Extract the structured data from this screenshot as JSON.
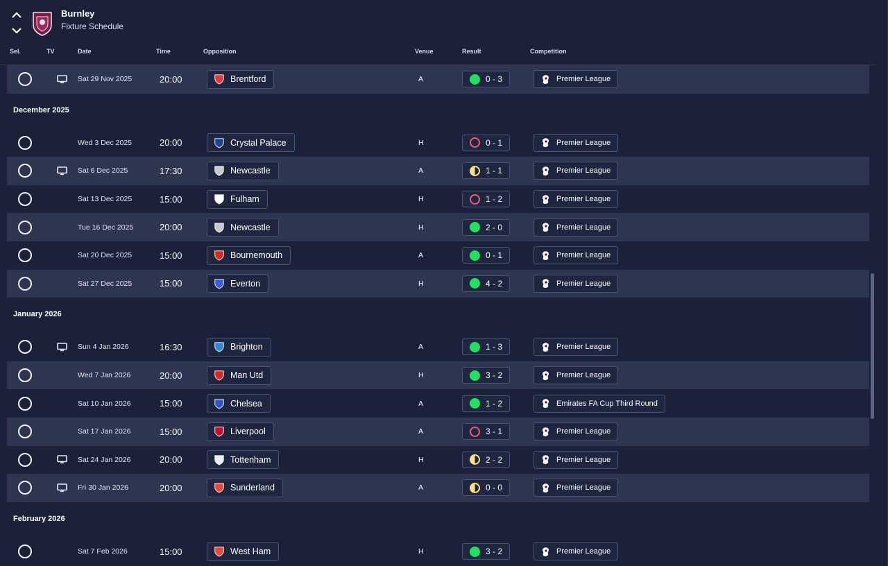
{
  "header": {
    "club": "Burnley",
    "page": "Fixture Schedule",
    "crest_icon": "burnley-crest-icon"
  },
  "columns": {
    "sel": "Sel.",
    "tv": "TV",
    "date": "Date",
    "time": "Time",
    "opposition": "Opposition",
    "venue": "Venue",
    "result": "Result",
    "competition": "Competition"
  },
  "colors": {
    "win": "#1de25b",
    "loss": "#ef5b79",
    "draw": "#ffe27a",
    "row_alt": "#2e3550",
    "background": "#1b2138"
  },
  "groups": [
    {
      "month": "",
      "fixtures": [
        {
          "tv": true,
          "date": "Sat 29 Nov 2025",
          "time": "20:00",
          "opponent": "Brentford",
          "venue": "A",
          "outcome": "win",
          "score": "0 - 3",
          "competition": "Premier League",
          "alt": true
        }
      ]
    },
    {
      "month": "December 2025",
      "fixtures": [
        {
          "tv": false,
          "date": "Wed 3 Dec 2025",
          "time": "20:00",
          "opponent": "Crystal Palace",
          "venue": "H",
          "outcome": "loss",
          "score": "0 - 1",
          "competition": "Premier League",
          "alt": false
        },
        {
          "tv": true,
          "date": "Sat 6 Dec 2025",
          "time": "17:30",
          "opponent": "Newcastle",
          "venue": "A",
          "outcome": "draw",
          "score": "1 - 1",
          "competition": "Premier League",
          "alt": true
        },
        {
          "tv": false,
          "date": "Sat 13 Dec 2025",
          "time": "15:00",
          "opponent": "Fulham",
          "venue": "H",
          "outcome": "loss",
          "score": "1 - 2",
          "competition": "Premier League",
          "alt": false
        },
        {
          "tv": false,
          "date": "Tue 16 Dec 2025",
          "time": "20:00",
          "opponent": "Newcastle",
          "venue": "H",
          "outcome": "win",
          "score": "2 - 0",
          "competition": "Premier League",
          "alt": true
        },
        {
          "tv": false,
          "date": "Sat 20 Dec 2025",
          "time": "15:00",
          "opponent": "Bournemouth",
          "venue": "A",
          "outcome": "win",
          "score": "0 - 1",
          "competition": "Premier League",
          "alt": false
        },
        {
          "tv": false,
          "date": "Sat 27 Dec 2025",
          "time": "15:00",
          "opponent": "Everton",
          "venue": "H",
          "outcome": "win",
          "score": "4 - 2",
          "competition": "Premier League",
          "alt": true
        }
      ]
    },
    {
      "month": "January 2026",
      "fixtures": [
        {
          "tv": true,
          "date": "Sun 4 Jan 2026",
          "time": "16:30",
          "opponent": "Brighton",
          "venue": "A",
          "outcome": "win",
          "score": "1 - 3",
          "competition": "Premier League",
          "alt": false
        },
        {
          "tv": false,
          "date": "Wed 7 Jan 2026",
          "time": "20:00",
          "opponent": "Man Utd",
          "venue": "H",
          "outcome": "win",
          "score": "3 - 2",
          "competition": "Premier League",
          "alt": true
        },
        {
          "tv": false,
          "date": "Sat 10 Jan 2026",
          "time": "15:00",
          "opponent": "Chelsea",
          "venue": "A",
          "outcome": "win",
          "score": "1 - 2",
          "competition": "Emirates FA Cup Third Round",
          "alt": false
        },
        {
          "tv": false,
          "date": "Sat 17 Jan 2026",
          "time": "15:00",
          "opponent": "Liverpool",
          "venue": "A",
          "outcome": "loss",
          "score": "3 - 1",
          "competition": "Premier League",
          "alt": true
        },
        {
          "tv": true,
          "date": "Sat 24 Jan 2026",
          "time": "20:00",
          "opponent": "Tottenham",
          "venue": "H",
          "outcome": "draw",
          "score": "2 - 2",
          "competition": "Premier League",
          "alt": false
        },
        {
          "tv": true,
          "date": "Fri 30 Jan 2026",
          "time": "20:00",
          "opponent": "Sunderland",
          "venue": "A",
          "outcome": "draw",
          "score": "0 - 0",
          "competition": "Premier League",
          "alt": true
        }
      ]
    },
    {
      "month": "February 2026",
      "fixtures": [
        {
          "tv": false,
          "date": "Sat 7 Feb 2026",
          "time": "15:00",
          "opponent": "West Ham",
          "venue": "H",
          "outcome": "win",
          "score": "3 - 2",
          "competition": "Premier League",
          "alt": false
        }
      ]
    }
  ],
  "badge_colors": {
    "Brentford": "#e03a3e",
    "Crystal Palace": "#1b458f",
    "Newcastle": "#c9c9c9",
    "Fulham": "#ffffff",
    "Bournemouth": "#da291c",
    "Everton": "#3b5cd8",
    "Brighton": "#2a8ad8",
    "Man Utd": "#da291c",
    "Chelsea": "#2a56c8",
    "Liverpool": "#c8102e",
    "Tottenham": "#e8ecf5",
    "Sunderland": "#e8493c",
    "West Ham": "#e8493c"
  }
}
